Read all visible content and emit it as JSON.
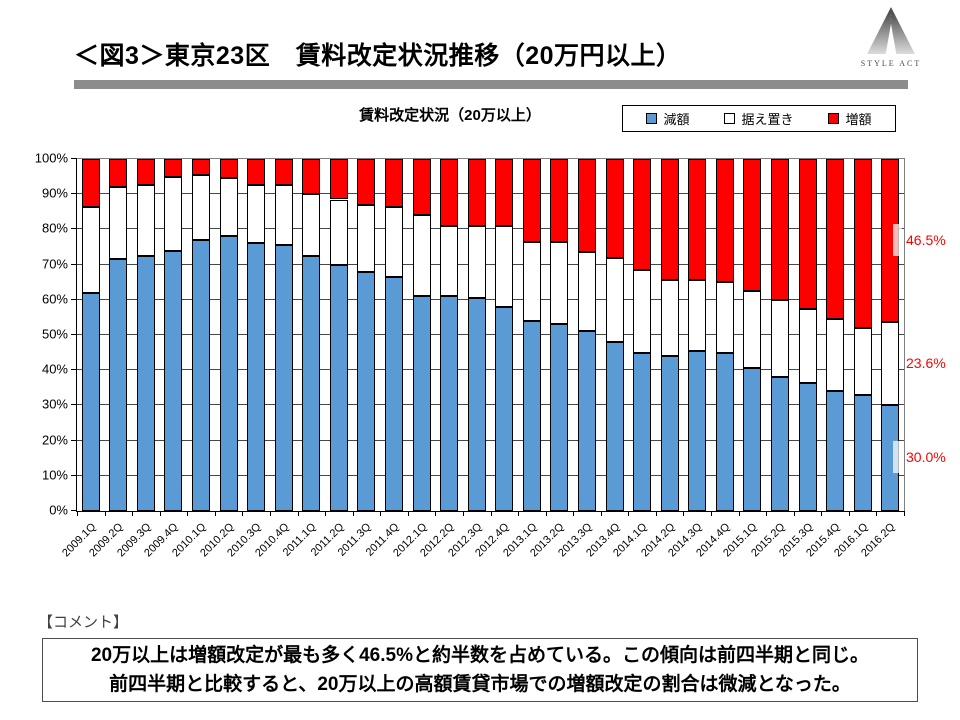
{
  "page": {
    "title": "＜図3＞東京23区　賃料改定状況推移（20万円以上）",
    "logo_brand": "STYLE ACT",
    "comment_label": "【コメント】",
    "comment_line1": "20万以上は増額改定が最も多く46.5%と約半数を占めている。この傾向は前四半期と同じ。",
    "comment_line2": "前四半期と比較すると、20万以上の高額賃貸市場での増額改定の割合は微減となった。"
  },
  "chart_data": {
    "type": "bar",
    "subtype": "stacked-100-percent",
    "title": "賃料改定状況（20万以上）",
    "legend_position": "top-right",
    "grid": true,
    "ylim": [
      0,
      100
    ],
    "y_ticks": [
      "0%",
      "10%",
      "20%",
      "30%",
      "40%",
      "50%",
      "60%",
      "70%",
      "80%",
      "90%",
      "100%"
    ],
    "categories": [
      "2009.1Q",
      "2009.2Q",
      "2009.3Q",
      "2009.4Q",
      "2010.1Q",
      "2010.2Q",
      "2010.3Q",
      "2010.4Q",
      "2011.1Q",
      "2011.2Q",
      "2011.3Q",
      "2011.4Q",
      "2012.1Q",
      "2012.2Q",
      "2012.3Q",
      "2012.4Q",
      "2013.1Q",
      "2013.2Q",
      "2013.3Q",
      "2013.4Q",
      "2014.1Q",
      "2014.2Q",
      "2014.3Q",
      "2014.4Q",
      "2015.1Q",
      "2015.2Q",
      "2015.3Q",
      "2015.4Q",
      "2016.1Q",
      "2016.2Q"
    ],
    "series": [
      {
        "name": "減額",
        "color": "#5B9BD5",
        "values": [
          62.0,
          71.5,
          72.5,
          74.0,
          77.0,
          78.0,
          76.0,
          75.5,
          72.5,
          70.0,
          68.0,
          66.5,
          61.0,
          61.0,
          60.5,
          58.0,
          54.0,
          53.0,
          51.0,
          48.0,
          45.0,
          44.0,
          45.5,
          45.0,
          40.5,
          38.0,
          36.5,
          34.0,
          33.0,
          30.0
        ]
      },
      {
        "name": "据え置き",
        "color": "#FFFFFF",
        "values": [
          24.5,
          20.5,
          20.0,
          21.0,
          18.5,
          16.5,
          16.5,
          17.0,
          17.5,
          18.5,
          19.0,
          20.0,
          23.0,
          20.0,
          20.5,
          23.0,
          22.5,
          23.5,
          22.5,
          24.0,
          23.5,
          21.5,
          20.0,
          20.0,
          22.0,
          22.0,
          21.0,
          20.5,
          19.0,
          23.6
        ]
      },
      {
        "name": "増額",
        "color": "#FF0000",
        "values": [
          13.5,
          8.0,
          7.5,
          5.0,
          4.5,
          5.5,
          7.5,
          7.5,
          10.0,
          11.5,
          13.0,
          13.5,
          16.0,
          19.0,
          19.0,
          19.0,
          23.5,
          23.5,
          26.5,
          28.0,
          31.5,
          34.5,
          34.5,
          35.0,
          37.5,
          40.0,
          42.5,
          45.5,
          48.0,
          46.5
        ]
      }
    ],
    "last_bar_labels": [
      {
        "text": "46.5%",
        "series": "増額",
        "y_pct": 76.8,
        "tab": true
      },
      {
        "text": "23.6%",
        "series": "据え置き",
        "y_pct": 41.8,
        "tab": false
      },
      {
        "text": "30.0%",
        "series": "減額",
        "y_pct": 15.0,
        "tab": true
      }
    ],
    "label_color": "#FF0000"
  }
}
